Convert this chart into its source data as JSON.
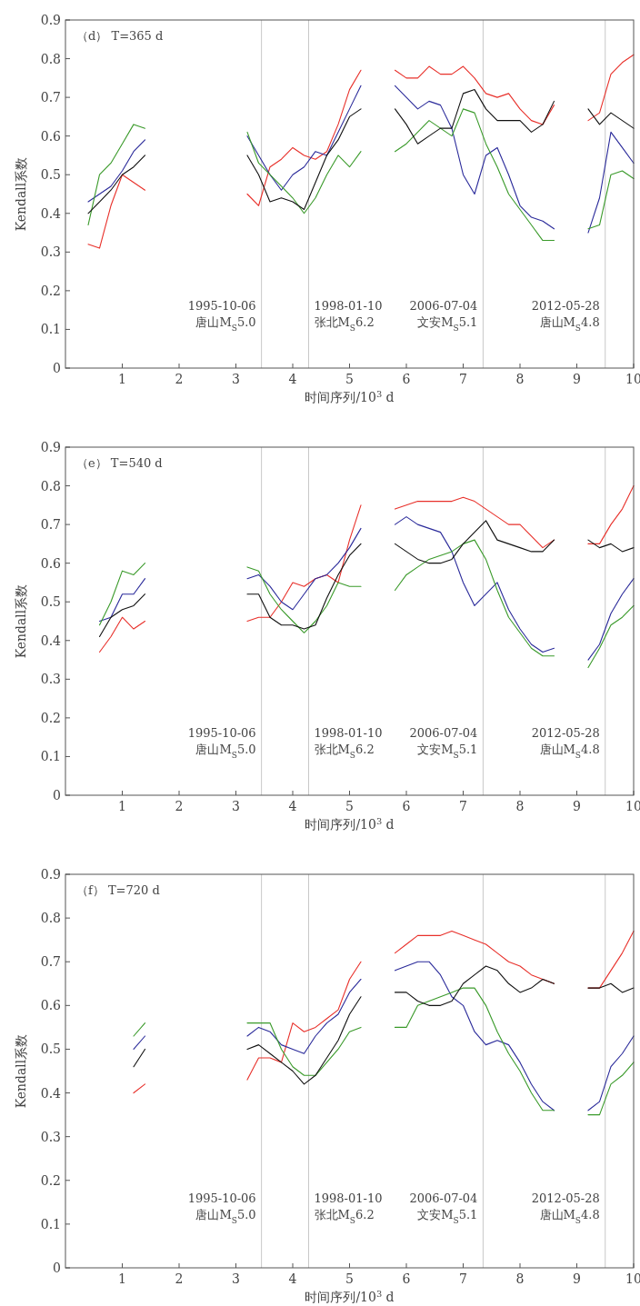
{
  "chart_data": [
    {
      "type": "line",
      "title": "（d） T=365 d",
      "xlabel": "时间序列/10$^{3}$ d",
      "ylabel": "Kendall系数",
      "xlim": [
        0,
        10
      ],
      "ylim": [
        0,
        0.9
      ],
      "xticks": [
        1,
        2,
        3,
        4,
        5,
        6,
        7,
        8,
        9,
        10
      ],
      "yticks": [
        0,
        0.1,
        0.2,
        0.3,
        0.4,
        0.5,
        0.6,
        0.7,
        0.8,
        0.9
      ],
      "x": [
        0.4,
        0.6,
        0.8,
        1,
        1.2,
        1.4,
        null,
        3.2,
        3.4,
        3.6,
        3.8,
        4,
        4.2,
        4.4,
        4.6,
        4.8,
        5,
        5.2,
        null,
        5.8,
        6,
        6.2,
        6.4,
        6.6,
        6.8,
        7,
        7.2,
        7.4,
        7.6,
        7.8,
        8,
        8.2,
        8.4,
        8.6,
        null,
        9.2,
        9.4,
        9.6,
        9.8,
        10
      ],
      "series": [
        {
          "color": "#e8302a",
          "values": [
            0.32,
            0.31,
            0.42,
            0.5,
            0.48,
            0.46,
            null,
            0.45,
            0.42,
            0.52,
            0.54,
            0.57,
            0.55,
            0.54,
            0.56,
            0.63,
            0.72,
            0.77,
            null,
            0.77,
            0.75,
            0.75,
            0.78,
            0.76,
            0.76,
            0.78,
            0.75,
            0.71,
            0.7,
            0.71,
            0.67,
            0.64,
            0.63,
            0.68,
            null,
            0.64,
            0.66,
            0.76,
            0.79,
            0.81
          ]
        },
        {
          "color": "#2a2a9a",
          "values": [
            0.43,
            0.45,
            0.47,
            0.51,
            0.56,
            0.59,
            null,
            0.6,
            0.55,
            0.5,
            0.46,
            0.5,
            0.52,
            0.56,
            0.55,
            0.61,
            0.67,
            0.73,
            null,
            0.73,
            0.7,
            0.67,
            0.69,
            0.68,
            0.62,
            0.5,
            0.45,
            0.55,
            0.57,
            0.5,
            0.42,
            0.39,
            0.38,
            0.36,
            null,
            0.35,
            0.44,
            0.61,
            0.57,
            0.53
          ]
        },
        {
          "color": "#3a9a2a",
          "values": [
            0.37,
            0.5,
            0.53,
            0.58,
            0.63,
            0.62,
            null,
            0.61,
            0.53,
            0.5,
            0.47,
            0.44,
            0.4,
            0.44,
            0.5,
            0.55,
            0.52,
            0.56,
            null,
            0.56,
            0.58,
            0.61,
            0.64,
            0.62,
            0.6,
            0.67,
            0.66,
            0.58,
            0.52,
            0.45,
            0.41,
            0.37,
            0.33,
            0.33,
            null,
            0.36,
            0.37,
            0.5,
            0.51,
            0.49
          ]
        },
        {
          "color": "#111111",
          "values": [
            0.4,
            0.43,
            0.46,
            0.5,
            0.52,
            0.55,
            null,
            0.55,
            0.5,
            0.43,
            0.44,
            0.43,
            0.41,
            0.48,
            0.55,
            0.59,
            0.65,
            0.67,
            null,
            0.67,
            0.63,
            0.58,
            0.6,
            0.62,
            0.62,
            0.71,
            0.72,
            0.67,
            0.64,
            0.64,
            0.64,
            0.61,
            0.63,
            0.69,
            null,
            0.67,
            0.63,
            0.66,
            0.64,
            0.62
          ]
        }
      ],
      "ref_lines": [
        {
          "axis": "x",
          "value": 3.45,
          "label": "1995-10-06\n唐山M$_{S}$5.0",
          "color": "#c8c8c8"
        },
        {
          "axis": "x",
          "value": 4.28,
          "label": "1998-01-10\n张北M$_{S}$6.2",
          "color": "#c8c8c8"
        },
        {
          "axis": "x",
          "value": 7.35,
          "label": "2006-07-04\n文安M$_{S}$5.1",
          "color": "#c8c8c8"
        },
        {
          "axis": "x",
          "value": 9.5,
          "label": "2012-05-28\n唐山M$_{S}$4.8",
          "color": "#c8c8c8"
        }
      ]
    },
    {
      "type": "line",
      "title": "（e） T=540 d",
      "xlabel": "时间序列/10$^{3}$ d",
      "ylabel": "Kendall系数",
      "xlim": [
        0,
        10
      ],
      "ylim": [
        0,
        0.9
      ],
      "xticks": [
        1,
        2,
        3,
        4,
        5,
        6,
        7,
        8,
        9,
        10
      ],
      "yticks": [
        0,
        0.1,
        0.2,
        0.3,
        0.4,
        0.5,
        0.6,
        0.7,
        0.8,
        0.9
      ],
      "x": [
        0.6,
        0.8,
        1,
        1.2,
        1.4,
        null,
        3.2,
        3.4,
        3.6,
        3.8,
        4,
        4.2,
        4.4,
        4.6,
        4.8,
        5,
        5.2,
        null,
        5.8,
        6,
        6.2,
        6.4,
        6.6,
        6.8,
        7,
        7.2,
        7.4,
        7.6,
        7.8,
        8,
        8.2,
        8.4,
        8.6,
        null,
        9.2,
        9.4,
        9.6,
        9.8,
        10
      ],
      "series": [
        {
          "color": "#e8302a",
          "values": [
            0.37,
            0.41,
            0.46,
            0.43,
            0.45,
            null,
            0.45,
            0.46,
            0.46,
            0.5,
            0.55,
            0.54,
            0.56,
            0.57,
            0.55,
            0.66,
            0.75,
            null,
            0.74,
            0.75,
            0.76,
            0.76,
            0.76,
            0.76,
            0.77,
            0.76,
            0.74,
            0.72,
            0.7,
            0.7,
            0.67,
            0.64,
            0.66,
            null,
            0.65,
            0.65,
            0.7,
            0.74,
            0.8
          ]
        },
        {
          "color": "#2a2a9a",
          "values": [
            0.45,
            0.46,
            0.52,
            0.52,
            0.56,
            null,
            0.56,
            0.57,
            0.54,
            0.5,
            0.48,
            0.52,
            0.56,
            0.57,
            0.6,
            0.64,
            0.69,
            null,
            0.7,
            0.72,
            0.7,
            0.69,
            0.68,
            0.63,
            0.55,
            0.49,
            0.52,
            0.55,
            0.48,
            0.43,
            0.39,
            0.37,
            0.38,
            null,
            0.35,
            0.39,
            0.47,
            0.52,
            0.56
          ]
        },
        {
          "color": "#3a9a2a",
          "values": [
            0.44,
            0.5,
            0.58,
            0.57,
            0.6,
            null,
            0.59,
            0.58,
            0.52,
            0.48,
            0.45,
            0.42,
            0.45,
            0.49,
            0.55,
            0.54,
            0.54,
            null,
            0.53,
            0.57,
            0.59,
            0.61,
            0.62,
            0.63,
            0.65,
            0.66,
            0.61,
            0.53,
            0.46,
            0.42,
            0.38,
            0.36,
            0.36,
            null,
            0.33,
            0.38,
            0.44,
            0.46,
            0.49
          ]
        },
        {
          "color": "#111111",
          "values": [
            0.41,
            0.46,
            0.48,
            0.49,
            0.52,
            null,
            0.52,
            0.52,
            0.46,
            0.44,
            0.44,
            0.43,
            0.44,
            0.51,
            0.57,
            0.62,
            0.65,
            null,
            0.65,
            0.63,
            0.61,
            0.6,
            0.6,
            0.61,
            0.65,
            0.68,
            0.71,
            0.66,
            0.65,
            0.64,
            0.63,
            0.63,
            0.66,
            null,
            0.66,
            0.64,
            0.65,
            0.63,
            0.64
          ]
        }
      ],
      "ref_lines": [
        {
          "axis": "x",
          "value": 3.45,
          "label": "1995-10-06\n唐山M$_{S}$5.0",
          "color": "#c8c8c8"
        },
        {
          "axis": "x",
          "value": 4.28,
          "label": "1998-01-10\n张北M$_{S}$6.2",
          "color": "#c8c8c8"
        },
        {
          "axis": "x",
          "value": 7.35,
          "label": "2006-07-04\n文安M$_{S}$5.1",
          "color": "#c8c8c8"
        },
        {
          "axis": "x",
          "value": 9.5,
          "label": "2012-05-28\n唐山M$_{S}$4.8",
          "color": "#c8c8c8"
        }
      ]
    },
    {
      "type": "line",
      "title": "（f） T=720 d",
      "xlabel": "时间序列/10$^{3}$ d",
      "ylabel": "Kendall系数",
      "xlim": [
        0,
        10
      ],
      "ylim": [
        0,
        0.9
      ],
      "xticks": [
        1,
        2,
        3,
        4,
        5,
        6,
        7,
        8,
        9,
        10
      ],
      "yticks": [
        0,
        0.1,
        0.2,
        0.3,
        0.4,
        0.5,
        0.6,
        0.7,
        0.8,
        0.9
      ],
      "x": [
        1.2,
        1.4,
        null,
        3.2,
        3.4,
        3.6,
        3.8,
        4,
        4.2,
        4.4,
        4.6,
        4.8,
        5,
        5.2,
        null,
        5.8,
        6,
        6.2,
        6.4,
        6.6,
        6.8,
        7,
        7.2,
        7.4,
        7.6,
        7.8,
        8,
        8.2,
        8.4,
        8.6,
        null,
        9.2,
        9.4,
        9.6,
        9.8,
        10
      ],
      "series": [
        {
          "color": "#e8302a",
          "values": [
            0.4,
            0.42,
            null,
            0.43,
            0.48,
            0.48,
            0.47,
            0.56,
            0.54,
            0.55,
            0.57,
            0.59,
            0.66,
            0.7,
            null,
            0.72,
            0.74,
            0.76,
            0.76,
            0.76,
            0.77,
            0.76,
            0.75,
            0.74,
            0.72,
            0.7,
            0.69,
            0.67,
            0.66,
            0.65,
            null,
            0.64,
            0.64,
            0.68,
            0.72,
            0.77
          ]
        },
        {
          "color": "#2a2a9a",
          "values": [
            0.5,
            0.53,
            null,
            0.53,
            0.55,
            0.54,
            0.51,
            0.5,
            0.49,
            0.53,
            0.56,
            0.58,
            0.63,
            0.66,
            null,
            0.68,
            0.69,
            0.7,
            0.7,
            0.67,
            0.62,
            0.6,
            0.54,
            0.51,
            0.52,
            0.51,
            0.47,
            0.42,
            0.38,
            0.36,
            null,
            0.36,
            0.38,
            0.46,
            0.49,
            0.53
          ]
        },
        {
          "color": "#3a9a2a",
          "values": [
            0.53,
            0.56,
            null,
            0.56,
            0.56,
            0.56,
            0.5,
            0.46,
            0.44,
            0.44,
            0.47,
            0.5,
            0.54,
            0.55,
            null,
            0.55,
            0.55,
            0.6,
            0.61,
            0.62,
            0.63,
            0.64,
            0.64,
            0.6,
            0.54,
            0.49,
            0.45,
            0.4,
            0.36,
            0.36,
            null,
            0.35,
            0.35,
            0.42,
            0.44,
            0.47
          ]
        },
        {
          "color": "#111111",
          "values": [
            0.46,
            0.5,
            null,
            0.5,
            0.51,
            0.49,
            0.47,
            0.45,
            0.42,
            0.44,
            0.48,
            0.52,
            0.58,
            0.62,
            null,
            0.63,
            0.63,
            0.61,
            0.6,
            0.6,
            0.61,
            0.65,
            0.67,
            0.69,
            0.68,
            0.65,
            0.63,
            0.64,
            0.66,
            0.65,
            null,
            0.64,
            0.64,
            0.65,
            0.63,
            0.64
          ]
        }
      ],
      "ref_lines": [
        {
          "axis": "x",
          "value": 3.45,
          "label": "1995-10-06\n唐山M$_{S}$5.0",
          "color": "#c8c8c8"
        },
        {
          "axis": "x",
          "value": 4.28,
          "label": "1998-01-10\n张北M$_{S}$6.2",
          "color": "#c8c8c8"
        },
        {
          "axis": "x",
          "value": 7.35,
          "label": "2006-07-04\n文安M$_{S}$5.1",
          "color": "#c8c8c8"
        },
        {
          "axis": "x",
          "value": 9.5,
          "label": "2012-05-28\n唐山M$_{S}$4.8",
          "color": "#c8c8c8"
        }
      ]
    }
  ]
}
